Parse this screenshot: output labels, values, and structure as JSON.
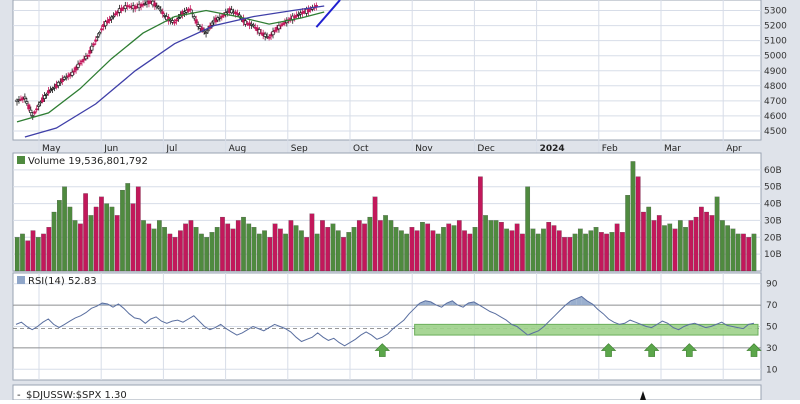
{
  "colors": {
    "up": "#4f8a3f",
    "down": "#c2185b",
    "ma_short": "#2e7d32",
    "ma_long": "#3f3fa8",
    "trendline": "#2020d0",
    "grid": "#d7dde8",
    "panel_bg": "#ffffff",
    "outer_bg": "#dfe3ea",
    "band_fill": "#9ed28a",
    "rsi_line": "#5a6fa0",
    "rsi_fill": "#8fa6c9",
    "arrow": "#5ba64a"
  },
  "chart_data": [
    {
      "type": "candlestick",
      "x_axis": {
        "tick_labels": [
          "May",
          "Jun",
          "Jul",
          "Aug",
          "Sep",
          "Oct",
          "Nov",
          "Dec",
          "2024",
          "Feb",
          "Mar",
          "Apr"
        ]
      },
      "y_axis": {
        "tick_labels": [
          "5300",
          "5200",
          "5100",
          "5000",
          "4900",
          "4800",
          "4700",
          "4600",
          "4500"
        ],
        "range": [
          4440,
          5370
        ]
      },
      "grid": true,
      "series": [
        {
          "kind": "close_path",
          "x": [
            0,
            2,
            4,
            6,
            8,
            10,
            12,
            14,
            16,
            18,
            20,
            22,
            24,
            26,
            28,
            30,
            32,
            34,
            36,
            38,
            40,
            42,
            44,
            46,
            48,
            50,
            52,
            54,
            56,
            58,
            60,
            62,
            64,
            66,
            68,
            70,
            72,
            74,
            76
          ],
          "values": [
            4700,
            4720,
            4600,
            4690,
            4760,
            4800,
            4850,
            4880,
            4950,
            5000,
            5100,
            5200,
            5250,
            5300,
            5330,
            5320,
            5340,
            5360,
            5320,
            5250,
            5220,
            5280,
            5310,
            5200,
            5150,
            5230,
            5260,
            5300,
            5280,
            5220,
            5200,
            5150,
            5120,
            5180,
            5220,
            5250,
            5280,
            5300,
            5330
          ]
        },
        {
          "kind": "moving_average_short",
          "x": [
            0,
            8,
            16,
            24,
            32,
            40,
            48,
            56,
            64,
            72,
            78
          ],
          "values": [
            4560,
            4620,
            4780,
            4980,
            5150,
            5260,
            5300,
            5260,
            5210,
            5250,
            5290
          ]
        },
        {
          "kind": "moving_average_long",
          "x": [
            2,
            10,
            20,
            30,
            40,
            50,
            60,
            70,
            78
          ],
          "values": [
            4460,
            4520,
            4680,
            4900,
            5080,
            5200,
            5260,
            5300,
            5330
          ]
        },
        {
          "kind": "trendline",
          "x": [
            76,
            82
          ],
          "values": [
            5190,
            5370
          ]
        }
      ]
    },
    {
      "type": "bar",
      "title": "Volume 19,536,801,792",
      "y_axis": {
        "tick_labels": [
          "60B",
          "50B",
          "40B",
          "30B",
          "20B",
          "10B"
        ],
        "range": [
          0,
          70
        ]
      },
      "values": [
        20,
        22,
        18,
        24,
        20,
        22,
        26,
        35,
        42,
        50,
        38,
        30,
        28,
        46,
        33,
        38,
        44,
        40,
        38,
        33,
        48,
        52,
        40,
        50,
        30,
        28,
        25,
        30,
        26,
        22,
        20,
        24,
        28,
        30,
        26,
        22,
        20,
        23,
        26,
        32,
        28,
        25,
        30,
        32,
        28,
        26,
        22,
        24,
        20,
        28,
        25,
        22,
        30,
        27,
        24,
        20,
        34,
        22,
        30,
        26,
        28,
        24,
        20,
        23,
        26,
        30,
        28,
        32,
        44,
        30,
        33,
        30,
        26,
        24,
        22,
        26,
        24,
        29,
        28,
        24,
        22,
        26,
        28,
        27,
        30,
        24,
        22,
        26,
        56,
        33,
        30,
        30,
        29,
        25,
        24,
        28,
        22,
        50,
        25,
        22,
        25,
        29,
        27,
        24,
        20,
        20,
        22,
        25,
        22,
        24,
        26,
        23,
        22,
        23,
        28,
        23,
        45,
        65,
        56,
        35,
        38,
        30,
        33,
        27,
        28,
        25,
        30,
        26,
        30,
        32,
        38,
        35,
        33,
        44,
        30,
        27,
        25,
        22,
        22,
        20,
        22
      ]
    },
    {
      "type": "line",
      "title": "RSI(14) 52.83",
      "y_axis": {
        "tick_labels": [
          "90",
          "70",
          "50",
          "30",
          "10"
        ],
        "range": [
          0,
          100
        ]
      },
      "reference_lines": [
        70,
        48,
        30
      ],
      "values": [
        52,
        54,
        50,
        47,
        50,
        54,
        57,
        52,
        49,
        52,
        55,
        58,
        60,
        63,
        67,
        69,
        72,
        71,
        68,
        71,
        67,
        62,
        58,
        57,
        53,
        57,
        59,
        55,
        53,
        55,
        56,
        54,
        57,
        60,
        55,
        50,
        47,
        49,
        52,
        48,
        45,
        42,
        44,
        47,
        50,
        48,
        46,
        49,
        52,
        50,
        48,
        45,
        40,
        36,
        38,
        40,
        44,
        40,
        37,
        39,
        35,
        32,
        35,
        38,
        42,
        45,
        42,
        38,
        40,
        43,
        48,
        52,
        56,
        62,
        67,
        72,
        74,
        73,
        70,
        68,
        72,
        74,
        70,
        68,
        72,
        73,
        70,
        67,
        64,
        62,
        59,
        56,
        52,
        50,
        46,
        42,
        44,
        46,
        50,
        55,
        60,
        65,
        70,
        74,
        76,
        78,
        74,
        71,
        66,
        62,
        57,
        54,
        52,
        53,
        56,
        54,
        52,
        50,
        49,
        52,
        55,
        53,
        49,
        47,
        50,
        52,
        53,
        51,
        49,
        50,
        52,
        54,
        51,
        50,
        49,
        48,
        52,
        53
      ],
      "up_arrows": [
        68,
        110,
        118,
        125,
        137
      ]
    },
    {
      "type": "line",
      "title": "$DJUSSW:$SPX 1.30"
    }
  ]
}
